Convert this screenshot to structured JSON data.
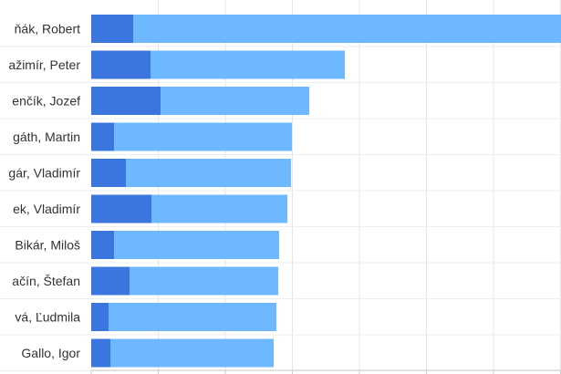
{
  "chart_data": {
    "type": "bar",
    "orientation": "horizontal",
    "stacked": true,
    "grid": true,
    "categories": [
      "ňák, Robert",
      "ažimír, Peter",
      "enčík, Jozef",
      "gáth, Martin",
      "gár, Vladimír",
      "ek, Vladimír",
      "Bikár, Miloš",
      "ačín, Štefan",
      "vá, Ľudmila",
      "Gallo, Igor"
    ],
    "series": [
      {
        "color": "#3a76dd",
        "values": [
          46,
          65,
          76,
          25,
          38,
          66,
          25,
          42,
          19,
          21
        ]
      },
      {
        "color": "#6db8ff",
        "values": [
          469,
          213,
          163,
          195,
          181,
          149,
          181,
          163,
          184,
          179
        ]
      }
    ],
    "xlim": [
      0,
      515
    ]
  }
}
